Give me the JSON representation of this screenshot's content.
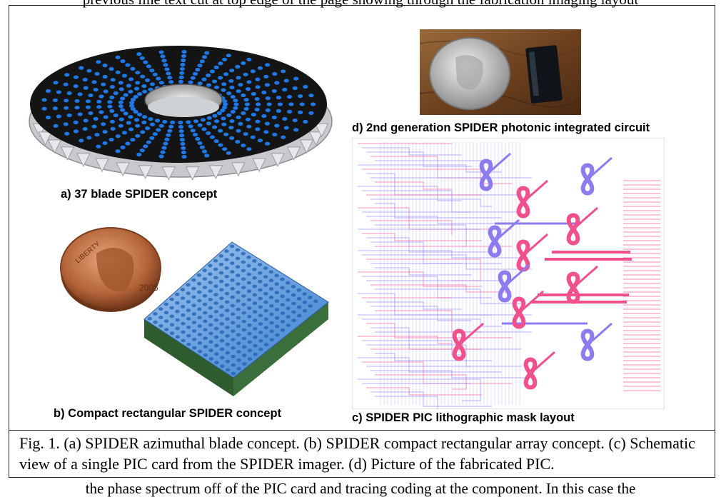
{
  "page": {
    "top_cut_text": "previous line text cut at top edge of the page showing through the fabrication imaging layout",
    "bottom_cut_text": "the phase spectrum off of the PIC card and tracing coding at the component. In this case the"
  },
  "figure": {
    "labels": {
      "a": "a) 37 blade SPIDER concept",
      "b": "b) Compact rectangular SPIDER concept",
      "c": "c) SPIDER PIC lithographic  mask layout",
      "d": "d) 2nd generation SPIDER photonic integrated circuit"
    },
    "coin_text": {
      "liberty": "LIBERTY",
      "year": "2005"
    },
    "caption": "Fig. 1. (a) SPIDER azimuthal blade concept. (b) SPIDER compact rectangular array concept. (c) Schematic view of a single PIC card from the SPIDER imager. (d) Picture of the fabricated PIC.",
    "colors": {
      "blade_blue": "#1e78e6",
      "disc_black": "#141414",
      "mask_pink": "#f0508c",
      "mask_purple": "#8c7cf0",
      "frame": "#222222"
    }
  }
}
